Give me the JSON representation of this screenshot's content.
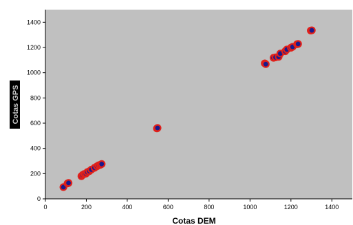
{
  "chart_data": {
    "type": "scatter",
    "title": "",
    "xlabel": "Cotas DEM",
    "ylabel": "Cotas GPS",
    "xlim": [
      0,
      1500
    ],
    "ylim": [
      0,
      1500
    ],
    "xticks": [
      0,
      200,
      400,
      600,
      800,
      1000,
      1200,
      1400
    ],
    "yticks": [
      0,
      200,
      400,
      600,
      800,
      1000,
      1200,
      1400
    ],
    "grid": false,
    "plot_background": "#c0c0c0",
    "marker_fill": "#1a1a8c",
    "marker_edge": "#e0201a",
    "series": [
      {
        "points": [
          [
            88,
            93
          ],
          [
            108,
            122
          ],
          [
            113,
            126
          ],
          [
            176,
            180
          ],
          [
            182,
            190
          ],
          [
            190,
            197
          ],
          [
            198,
            200
          ],
          [
            205,
            212
          ],
          [
            215,
            220
          ],
          [
            225,
            232
          ],
          [
            240,
            246
          ],
          [
            252,
            258
          ],
          [
            260,
            266
          ],
          [
            268,
            270
          ],
          [
            275,
            276
          ],
          [
            545,
            558
          ],
          [
            548,
            562
          ],
          [
            1072,
            1074
          ],
          [
            1077,
            1068
          ],
          [
            1115,
            1118
          ],
          [
            1125,
            1122
          ],
          [
            1140,
            1126
          ],
          [
            1148,
            1152
          ],
          [
            1172,
            1170
          ],
          [
            1180,
            1184
          ],
          [
            1200,
            1198
          ],
          [
            1208,
            1205
          ],
          [
            1230,
            1226
          ],
          [
            1235,
            1228
          ],
          [
            1297,
            1334
          ],
          [
            1302,
            1336
          ]
        ]
      }
    ]
  }
}
